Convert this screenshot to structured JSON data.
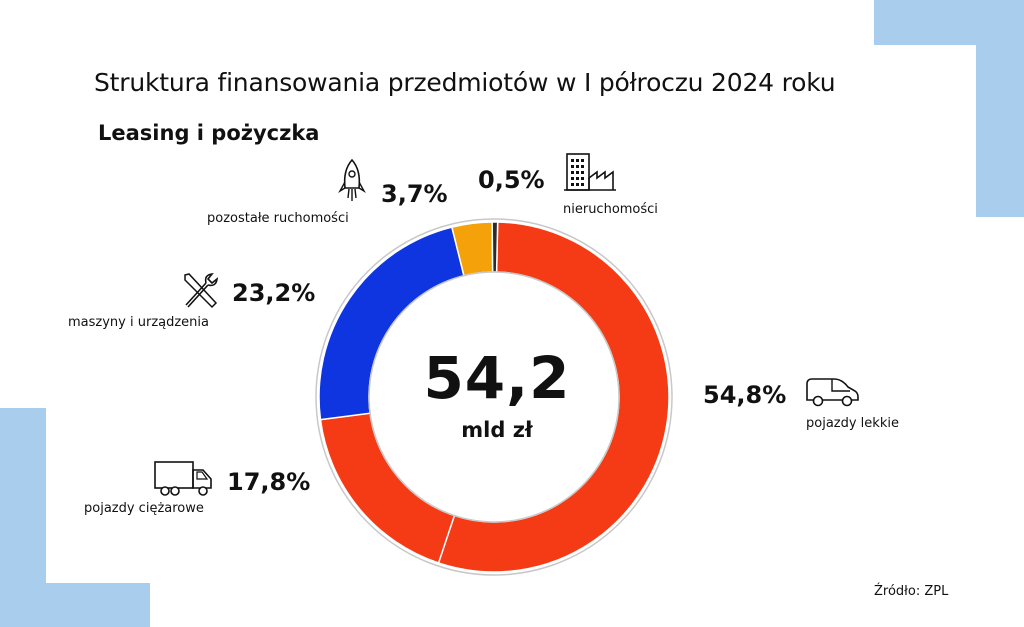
{
  "title": "Struktura finansowania przedmiotów w I półroczu 2024 roku",
  "subtitle": "Leasing i pożyczka",
  "center": {
    "value": "54,2",
    "unit": "mld zł"
  },
  "source": "Źródło: ZPL",
  "chart_data": {
    "type": "pie",
    "title": "Struktura finansowania przedmiotów w I półroczu 2024 roku",
    "subtitle": "Leasing i pożyczka",
    "total": 54.2,
    "total_unit": "mld zł",
    "categories": [
      "pojazdy lekkie",
      "pojazdy ciężarowe",
      "maszyny i urządzenia",
      "pozostałe ruchomości",
      "nieruchomości"
    ],
    "values": [
      54.8,
      17.8,
      23.2,
      3.7,
      0.5
    ],
    "value_labels": [
      "54,8%",
      "17,8%",
      "23,2%",
      "3,7%",
      "0,5%"
    ],
    "colors": [
      "#f53b16",
      "#f53b16",
      "#0e35e0",
      "#f5a10a",
      "#2b2b2b"
    ],
    "icons": [
      "van-icon",
      "truck-icon",
      "wrench-screwdriver-icon",
      "rocket-icon",
      "building-icon"
    ]
  }
}
